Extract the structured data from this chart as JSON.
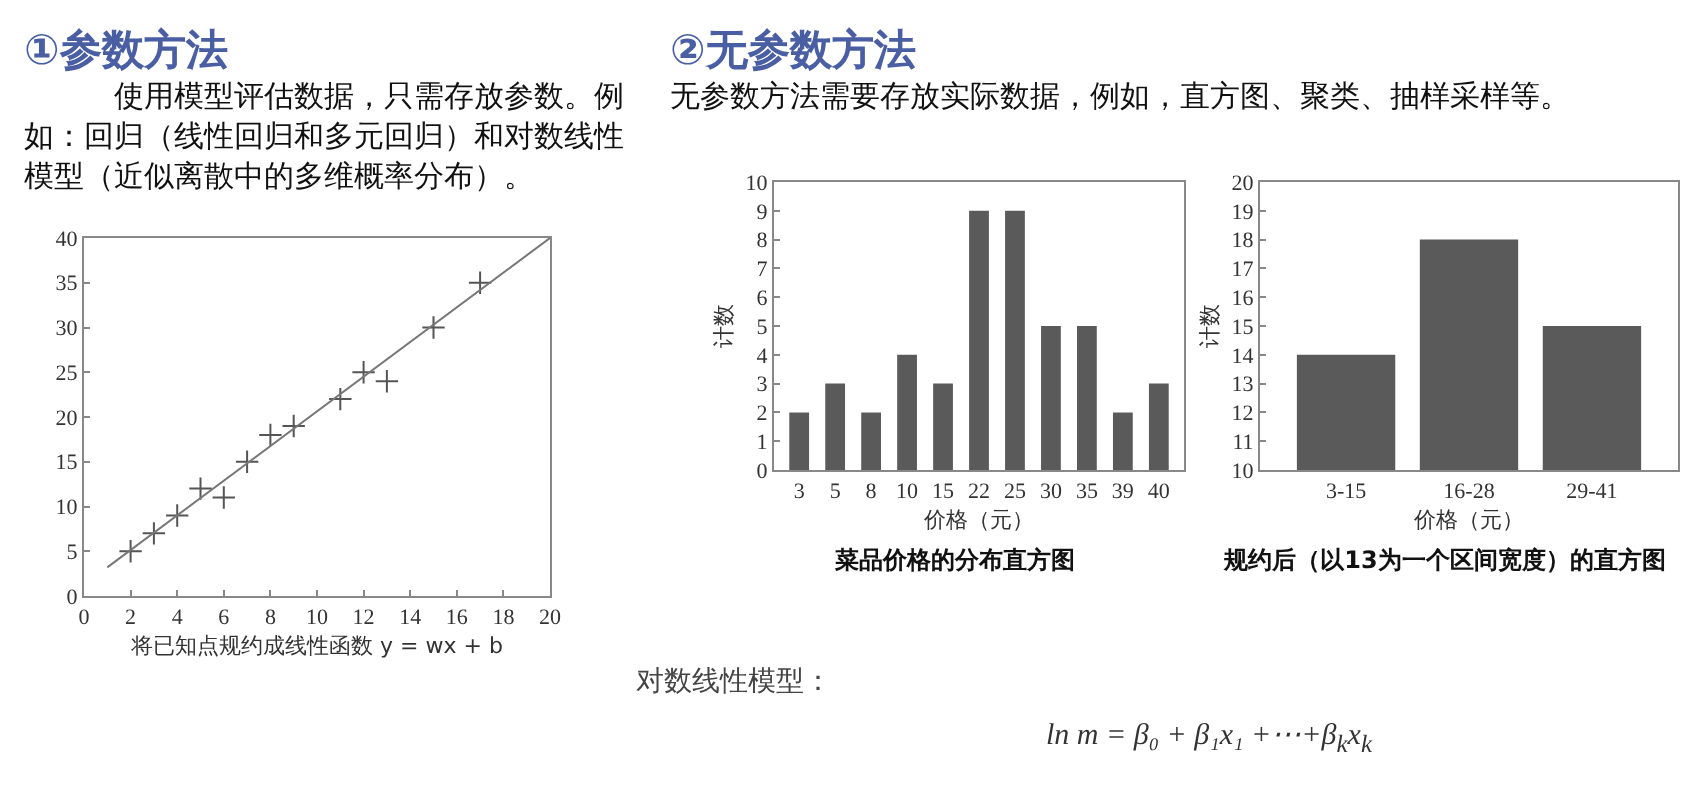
{
  "chart_data": [
    {
      "type": "scatter",
      "title": "①参数方法",
      "subtitle": "使用模型评估数据，只需存放参数。例如：回归（线性回归和多元回归）和对数线性模型（近似离散中的多维概率分布）。",
      "xlabel": "将已知点规约成线性函数 y = wx + b",
      "line_style": "solid",
      "grid": false,
      "xlim": [
        0,
        20
      ],
      "xticks": [
        0,
        2,
        4,
        6,
        8,
        10,
        12,
        14,
        16,
        18,
        20
      ],
      "ylim": [
        0,
        40
      ],
      "yticks": [
        0,
        5,
        10,
        15,
        20,
        25,
        30,
        35,
        40
      ],
      "series": [
        {
          "type": "scatter",
          "marker": "cross",
          "color": "#555555",
          "x": [
            2,
            3,
            4,
            5,
            6,
            7,
            8,
            9,
            11,
            12,
            13,
            15,
            17
          ],
          "values": [
            5,
            7,
            9,
            12,
            11,
            15,
            18,
            19,
            22,
            25,
            24,
            30,
            35
          ]
        },
        {
          "type": "line",
          "marker": "none",
          "color": "#777777",
          "x": [
            1,
            20
          ],
          "values": [
            3.2,
            40
          ]
        }
      ]
    },
    {
      "type": "other",
      "title": "②无参数方法",
      "subtitle": "无参数方法需要存放实际数据，例如，直方图、聚类、抽样采样等。"
    },
    {
      "type": "bar",
      "xlabel": "价格（元）",
      "ylabel": "计数",
      "annotations": [
        "菜品价格的分布直方图"
      ],
      "grid": false,
      "categories": [
        "3",
        "5",
        "8",
        "10",
        "15",
        "22",
        "25",
        "30",
        "35",
        "39",
        "40"
      ],
      "values": [
        2,
        3,
        2,
        4,
        3,
        9,
        9,
        5,
        5,
        2,
        3
      ],
      "color": "#5a5a5a",
      "ylim": [
        0,
        10
      ],
      "yticks": [
        0,
        1,
        2,
        3,
        4,
        5,
        6,
        7,
        8,
        9,
        10
      ]
    },
    {
      "type": "bar",
      "xlabel": "价格（元）",
      "ylabel": "计数",
      "annotations": [
        "规约后（以13为一个区间宽度）的直方图"
      ],
      "grid": false,
      "categories": [
        "3-15",
        "16-28",
        "29-41"
      ],
      "values": [
        14,
        18,
        15
      ],
      "color": "#5a5a5a",
      "ylim": [
        10,
        20
      ],
      "yticks": [
        10,
        11,
        12,
        13,
        14,
        15,
        16,
        17,
        18,
        19,
        20
      ]
    },
    {
      "type": "other",
      "title": "对数线性模型：",
      "subtitle": "ln m = β₀ + β₁x₁ +⋯+β$_{k}$x$_{k}$"
    }
  ]
}
